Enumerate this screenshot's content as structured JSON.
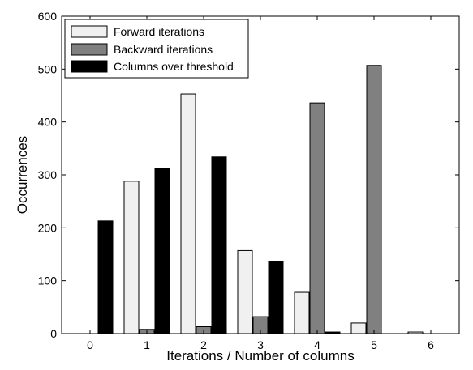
{
  "chart_data": {
    "type": "bar",
    "categories": [
      "0",
      "1",
      "2",
      "3",
      "4",
      "5",
      "6"
    ],
    "series": [
      {
        "name": "Forward iterations",
        "color": "#f0f0f0",
        "values": [
          0,
          288,
          453,
          157,
          78,
          20,
          3
        ]
      },
      {
        "name": "Backward iterations",
        "color": "#808080",
        "values": [
          0,
          8,
          13,
          32,
          436,
          507,
          0
        ]
      },
      {
        "name": "Columns over threshold",
        "color": "#000000",
        "values": [
          213,
          313,
          334,
          137,
          3,
          0,
          0
        ]
      }
    ],
    "xlabel": "Iterations / Number of columns",
    "ylabel": "Occurrences",
    "ylim": [
      0,
      600
    ],
    "yticks": [
      "0",
      "100",
      "200",
      "300",
      "400",
      "500",
      "600"
    ],
    "grid": false,
    "legend_position": "top-left"
  }
}
